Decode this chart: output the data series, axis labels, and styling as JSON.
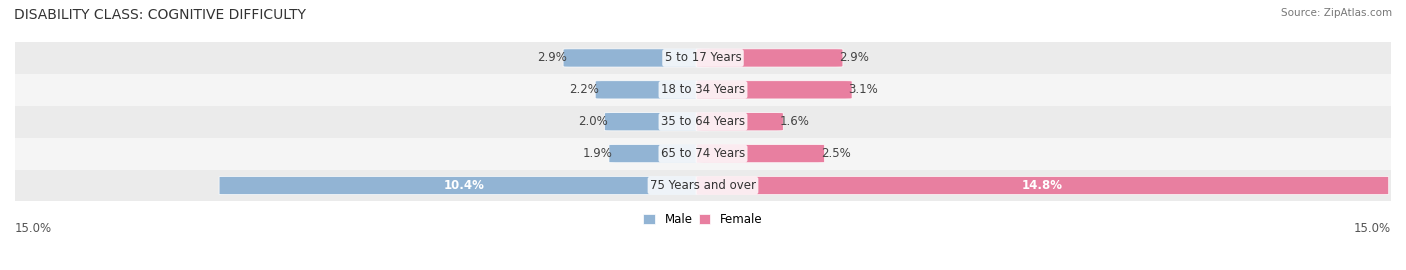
{
  "title": "DISABILITY CLASS: COGNITIVE DIFFICULTY",
  "source": "Source: ZipAtlas.com",
  "categories": [
    "5 to 17 Years",
    "18 to 34 Years",
    "35 to 64 Years",
    "65 to 74 Years",
    "75 Years and over"
  ],
  "male_values": [
    2.9,
    2.2,
    2.0,
    1.9,
    10.4
  ],
  "female_values": [
    2.9,
    3.1,
    1.6,
    2.5,
    14.8
  ],
  "max_val": 15.0,
  "male_color": "#92b4d4",
  "female_color": "#e87fa0",
  "male_label": "Male",
  "female_label": "Female",
  "row_bg_even": "#ebebeb",
  "row_bg_odd": "#f5f5f5",
  "bar_height": 0.55,
  "title_fontsize": 10,
  "label_fontsize": 8.5,
  "axis_label_fontsize": 8.5,
  "category_fontsize": 8.5
}
